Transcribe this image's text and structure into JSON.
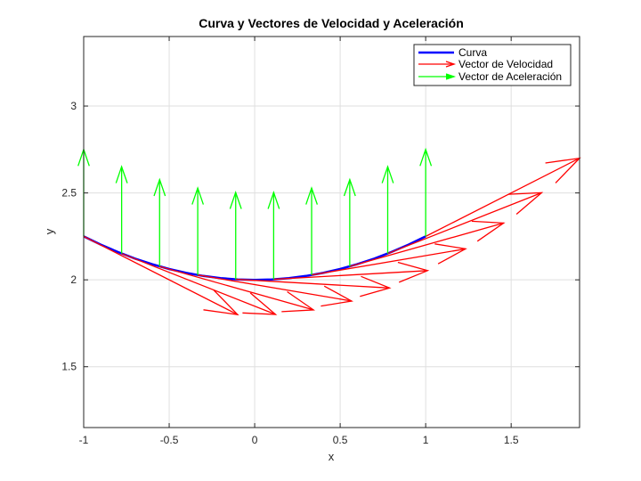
{
  "chart_data": {
    "type": "line",
    "title": "Curva y Vectores de Velocidad y Aceleración",
    "xlabel": "x",
    "ylabel": "y",
    "xlim": [
      -1,
      1.9
    ],
    "ylim": [
      1.15,
      3.4
    ],
    "xticks": [
      -1,
      -0.5,
      0,
      0.5,
      1,
      1.5
    ],
    "xtick_labels": [
      "-1",
      "-0.5",
      "0",
      "0.5",
      "1",
      "1.5"
    ],
    "yticks": [
      1.5,
      2,
      2.5,
      3
    ],
    "ytick_labels": [
      "1.5",
      "2",
      "2.5",
      "3"
    ],
    "grid": true,
    "legend_location": "top-right",
    "colors": {
      "curve": "#0000ff",
      "velocity": "#ff0000",
      "acceleration": "#00ff00"
    },
    "series": [
      {
        "name": "Curva",
        "x": [
          -1,
          -0.9,
          -0.8,
          -0.7,
          -0.6,
          -0.5,
          -0.4,
          -0.3,
          -0.2,
          -0.1,
          0,
          0.1,
          0.2,
          0.3,
          0.4,
          0.5,
          0.6,
          0.7,
          0.8,
          0.9,
          1
        ],
        "y": [
          2.25,
          2.2025,
          2.16,
          2.1225,
          2.09,
          2.0625,
          2.04,
          2.0225,
          2.01,
          2.0025,
          2.0,
          2.0025,
          2.01,
          2.0225,
          2.04,
          2.0625,
          2.09,
          2.1225,
          2.16,
          2.2025,
          2.25
        ]
      },
      {
        "name": "Vector de Velocidad",
        "points": [
          {
            "x": -1.0,
            "y": 2.25,
            "u": 0.9,
            "v": -0.45
          },
          {
            "x": -0.778,
            "y": 2.151,
            "u": 0.9,
            "v": -0.35
          },
          {
            "x": -0.556,
            "y": 2.077,
            "u": 0.9,
            "v": -0.25
          },
          {
            "x": -0.333,
            "y": 2.028,
            "u": 0.9,
            "v": -0.15
          },
          {
            "x": -0.111,
            "y": 2.003,
            "u": 0.9,
            "v": -0.05
          },
          {
            "x": 0.111,
            "y": 2.003,
            "u": 0.9,
            "v": 0.05
          },
          {
            "x": 0.333,
            "y": 2.028,
            "u": 0.9,
            "v": 0.15
          },
          {
            "x": 0.556,
            "y": 2.077,
            "u": 0.9,
            "v": 0.25
          },
          {
            "x": 0.778,
            "y": 2.151,
            "u": 0.9,
            "v": 0.35
          },
          {
            "x": 1.0,
            "y": 2.25,
            "u": 0.9,
            "v": 0.45
          }
        ]
      },
      {
        "name": "Vector de Aceleración",
        "points": [
          {
            "x": -1.0,
            "y": 2.25,
            "u": 0,
            "v": 0.5
          },
          {
            "x": -0.778,
            "y": 2.151,
            "u": 0,
            "v": 0.5
          },
          {
            "x": -0.556,
            "y": 2.077,
            "u": 0,
            "v": 0.5
          },
          {
            "x": -0.333,
            "y": 2.028,
            "u": 0,
            "v": 0.5
          },
          {
            "x": -0.111,
            "y": 2.003,
            "u": 0,
            "v": 0.5
          },
          {
            "x": 0.111,
            "y": 2.003,
            "u": 0,
            "v": 0.5
          },
          {
            "x": 0.333,
            "y": 2.028,
            "u": 0,
            "v": 0.5
          },
          {
            "x": 0.556,
            "y": 2.077,
            "u": 0,
            "v": 0.5
          },
          {
            "x": 0.778,
            "y": 2.151,
            "u": 0,
            "v": 0.5
          },
          {
            "x": 1.0,
            "y": 2.25,
            "u": 0,
            "v": 0.5
          }
        ]
      }
    ]
  }
}
